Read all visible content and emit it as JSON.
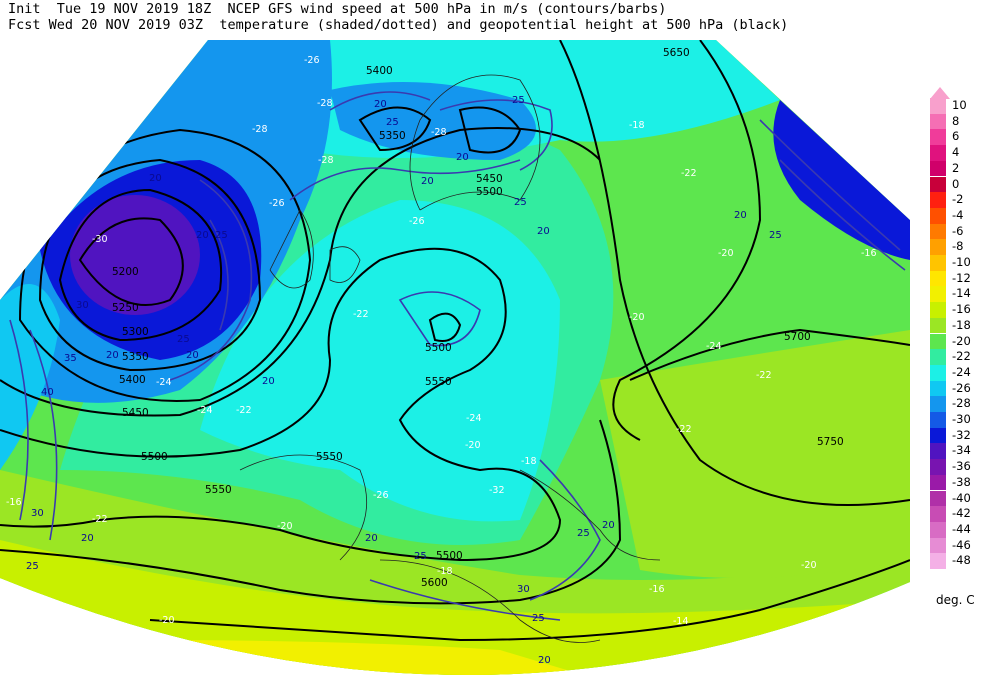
{
  "header": {
    "line1": "Init  Tue 19 NOV 2019 18Z  NCEP GFS wind speed at 500 hPa in m/s (contours/barbs)",
    "line2": "Fcst Wed 20 NOV 2019 03Z  temperature (shaded/dotted) and geopotential height at 500 hPa (black)"
  },
  "legend": {
    "units": "deg. C",
    "entries": [
      {
        "label": "10",
        "color": "#f8a0cc"
      },
      {
        "label": "8",
        "color": "#f56fb4"
      },
      {
        "label": "6",
        "color": "#f03c9a"
      },
      {
        "label": "4",
        "color": "#e0127e"
      },
      {
        "label": "2",
        "color": "#d0006a"
      },
      {
        "label": "0",
        "color": "#c8003a"
      },
      {
        "label": "-2",
        "color": "#ff2010"
      },
      {
        "label": "-4",
        "color": "#ff5000"
      },
      {
        "label": "-6",
        "color": "#ff7a00"
      },
      {
        "label": "-8",
        "color": "#ffa000"
      },
      {
        "label": "-10",
        "color": "#ffc400"
      },
      {
        "label": "-12",
        "color": "#ffe600"
      },
      {
        "label": "-14",
        "color": "#f2f000"
      },
      {
        "label": "-16",
        "color": "#c8f000"
      },
      {
        "label": "-18",
        "color": "#9be624"
      },
      {
        "label": "-20",
        "color": "#5de64e"
      },
      {
        "label": "-22",
        "color": "#32eca0"
      },
      {
        "label": "-24",
        "color": "#1cf0e6"
      },
      {
        "label": "-26",
        "color": "#10c8f2"
      },
      {
        "label": "-28",
        "color": "#1496ee"
      },
      {
        "label": "-30",
        "color": "#145ae6"
      },
      {
        "label": "-32",
        "color": "#0a18d8"
      },
      {
        "label": "-34",
        "color": "#5014c0"
      },
      {
        "label": "-36",
        "color": "#7814b0"
      },
      {
        "label": "-38",
        "color": "#9a1aa8"
      },
      {
        "label": "-40",
        "color": "#b030a8"
      },
      {
        "label": "-42",
        "color": "#c84cb4"
      },
      {
        "label": "-44",
        "color": "#d86cc4"
      },
      {
        "label": "-46",
        "color": "#e68cd4"
      },
      {
        "label": "-48",
        "color": "#f4b0e6"
      }
    ]
  },
  "height_labels": [
    "5650",
    "5400",
    "5350",
    "5450",
    "5500",
    "5500",
    "5550",
    "5200",
    "5250",
    "5300",
    "5350",
    "5400",
    "5450",
    "5500",
    "5550",
    "5550",
    "5600",
    "5700",
    "5750",
    "5500"
  ],
  "wind_labels": [
    "20",
    "25",
    "20",
    "20",
    "25",
    "25",
    "20",
    "20",
    "25",
    "20",
    "30",
    "35",
    "40",
    "30",
    "25",
    "20",
    "20",
    "25",
    "20",
    "20",
    "20",
    "25",
    "30",
    "25",
    "20",
    "25",
    "20",
    "20",
    "25"
  ],
  "temp_labels": [
    "-26",
    "-28",
    "-28",
    "-28",
    "-26",
    "-30",
    "-28",
    "-26",
    "-22",
    "-20",
    "-22",
    "-18",
    "-20",
    "-24",
    "-22",
    "-22",
    "-22",
    "-24",
    "-24",
    "-26",
    "-32",
    "-24",
    "-22",
    "-20",
    "-20",
    "-18",
    "-16",
    "-16",
    "-14",
    "-20",
    "-16",
    "-18",
    "-20"
  ]
}
